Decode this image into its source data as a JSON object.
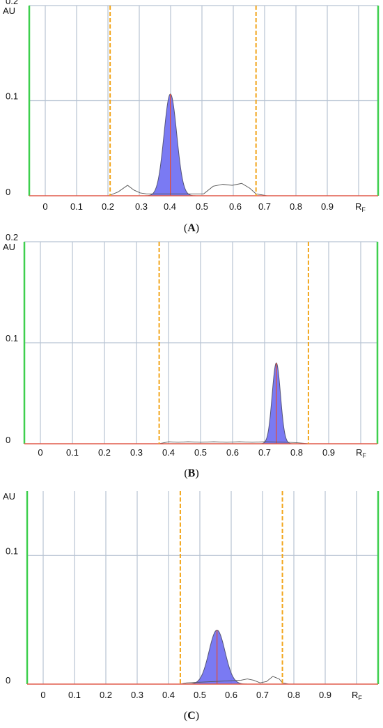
{
  "chart_data": [
    {
      "type": "line",
      "caption": "A",
      "ylabel": "AU",
      "xlabel_main": "R",
      "xlabel_sub": "F",
      "xlim": [
        -0.05,
        1.05
      ],
      "ylim": [
        0,
        0.2
      ],
      "x_ticks": [
        "0",
        "0.1",
        "0.2",
        "0.3",
        "0.4",
        "0.5",
        "0.6",
        "0.7",
        "0.8",
        "0.9"
      ],
      "y_ticks": [
        {
          "label": "0",
          "value": 0
        },
        {
          "label": "0.1",
          "value": 0.1
        },
        {
          "label": "0.2",
          "value": 0.2
        }
      ],
      "grid": true,
      "integration_bounds": [
        0.205,
        0.665
      ],
      "peak": {
        "rf": 0.395,
        "height": 0.107,
        "width": 0.02
      },
      "noise": [
        [
          0.2,
          0.0
        ],
        [
          0.23,
          0.004
        ],
        [
          0.26,
          0.011
        ],
        [
          0.28,
          0.006
        ],
        [
          0.3,
          0.003
        ],
        [
          0.32,
          0.002
        ],
        [
          0.5,
          0.002
        ],
        [
          0.53,
          0.01
        ],
        [
          0.56,
          0.012
        ],
        [
          0.59,
          0.011
        ],
        [
          0.62,
          0.013
        ],
        [
          0.645,
          0.008
        ],
        [
          0.665,
          0.002
        ],
        [
          0.7,
          0.0
        ]
      ]
    },
    {
      "type": "line",
      "caption": "B",
      "ylabel": "AU",
      "xlabel_main": "R",
      "xlabel_sub": "F",
      "xlim": [
        -0.05,
        1.05
      ],
      "ylim": [
        0,
        0.2
      ],
      "x_ticks": [
        "0",
        "0.1",
        "0.2",
        "0.3",
        "0.4",
        "0.5",
        "0.6",
        "0.7",
        "0.8",
        "0.9"
      ],
      "y_ticks": [
        {
          "label": "0",
          "value": 0
        },
        {
          "label": "0.1",
          "value": 0.1
        },
        {
          "label": "0.2",
          "value": 0.2
        }
      ],
      "grid": true,
      "integration_bounds": [
        0.37,
        0.835
      ],
      "peak": {
        "rf": 0.735,
        "height": 0.08,
        "width": 0.013
      },
      "noise": [
        [
          0.37,
          0.0
        ],
        [
          0.4,
          0.002
        ],
        [
          0.43,
          0.0015
        ],
        [
          0.46,
          0.002
        ],
        [
          0.5,
          0.0015
        ],
        [
          0.54,
          0.002
        ],
        [
          0.58,
          0.0015
        ],
        [
          0.62,
          0.002
        ],
        [
          0.66,
          0.0015
        ],
        [
          0.7,
          0.002
        ],
        [
          0.77,
          0.0015
        ],
        [
          0.8,
          0.001
        ],
        [
          0.835,
          0.0
        ]
      ]
    },
    {
      "type": "line",
      "caption": "C",
      "ylabel": "AU",
      "xlabel_main": "R",
      "xlabel_sub": "F",
      "xlim": [
        -0.05,
        1.05
      ],
      "ylim": [
        0,
        0.15
      ],
      "x_ticks": [
        "0",
        "0.1",
        "0.2",
        "0.3",
        "0.4",
        "0.5",
        "0.6",
        "0.7",
        "0.8",
        "0.9"
      ],
      "y_ticks": [
        {
          "label": "0",
          "value": 0
        },
        {
          "label": "0.1",
          "value": 0.1
        }
      ],
      "grid": true,
      "integration_bounds": [
        0.43,
        0.75
      ],
      "peak": {
        "rf": 0.545,
        "height": 0.042,
        "width": 0.025
      },
      "noise": [
        [
          0.43,
          0.0
        ],
        [
          0.45,
          0.001
        ],
        [
          0.62,
          0.003
        ],
        [
          0.64,
          0.004
        ],
        [
          0.66,
          0.003
        ],
        [
          0.68,
          0.001
        ],
        [
          0.7,
          0.002
        ],
        [
          0.72,
          0.006
        ],
        [
          0.74,
          0.004
        ],
        [
          0.75,
          0.001
        ],
        [
          0.77,
          0.0
        ]
      ]
    }
  ]
}
